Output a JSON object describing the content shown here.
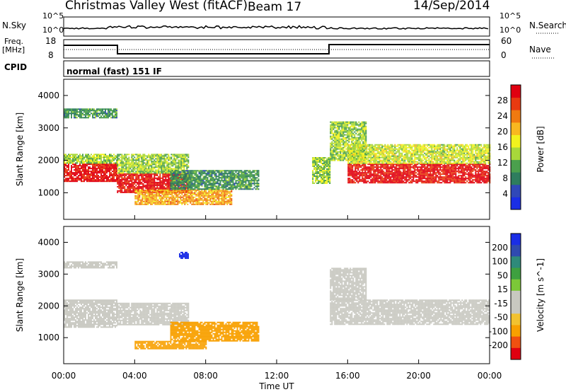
{
  "header": {
    "radar": "Christmas Valley West (fitACF)",
    "beam": "Beam 17",
    "date": "14/Sep/2014"
  },
  "top_panels": {
    "nsky_label": "N.Sky",
    "nsky_ticks": [
      "10^5",
      "10^0"
    ],
    "nsearch_label": "N.Search",
    "nsearch_ticks": [
      "10^5",
      "10^0"
    ],
    "freq_label_1": "Freq.",
    "freq_label_2": "[MHz]",
    "freq_ticks": [
      "18",
      "8"
    ],
    "nave_label": "Nave",
    "nave_ticks": [
      "60",
      "0"
    ],
    "cpid_label": "CPID",
    "cpid_text": "normal (fast) 151 IF"
  },
  "colors": {
    "power_scale": [
      "#1a2ee6",
      "#3048b8",
      "#2e7d5e",
      "#4ba04d",
      "#a8d83a",
      "#f2f21e",
      "#f8b820",
      "#f07a10",
      "#e83a10",
      "#e00010"
    ],
    "velocity_scale": [
      "#e00010",
      "#f05010",
      "#f8a000",
      "#f2c230",
      "#c8c8c0",
      "#c8c8c0",
      "#7cc838",
      "#3ea040",
      "#2e8a7a",
      "#2f4ab0",
      "#1a2ee6"
    ]
  },
  "chart_data": [
    {
      "type": "heatmap",
      "name": "power",
      "ylabel": "Slant Range [km]",
      "ylim": [
        180,
        4500
      ],
      "yticks": [
        "1000",
        "2000",
        "3000",
        "4000"
      ],
      "xlim": [
        0,
        24
      ],
      "colorbar_label": "Power [dB]",
      "colorbar_ticks": [
        "4",
        "8",
        "12",
        "16",
        "20",
        "24",
        "28"
      ],
      "colorbar_range": [
        0,
        32
      ],
      "echo_regions": [
        {
          "t0": 0.0,
          "t1": 3.0,
          "r0": 1350,
          "r1": 1900,
          "level": 30
        },
        {
          "t0": 0.0,
          "t1": 3.0,
          "r0": 1900,
          "r1": 2200,
          "level": 14
        },
        {
          "t0": 0.0,
          "t1": 3.0,
          "r0": 3300,
          "r1": 3600,
          "level": 10
        },
        {
          "t0": 3.0,
          "t1": 7.0,
          "r0": 1000,
          "r1": 1600,
          "level": 30
        },
        {
          "t0": 3.0,
          "t1": 7.0,
          "r0": 1600,
          "r1": 2200,
          "level": 14
        },
        {
          "t0": 4.0,
          "t1": 9.5,
          "r0": 650,
          "r1": 1100,
          "level": 22
        },
        {
          "t0": 6.0,
          "t1": 11.0,
          "r0": 1100,
          "r1": 1700,
          "level": 10
        },
        {
          "t0": 14.0,
          "t1": 15.0,
          "r0": 1300,
          "r1": 2100,
          "level": 14
        },
        {
          "t0": 15.0,
          "t1": 17.0,
          "r0": 2000,
          "r1": 3200,
          "level": 14
        },
        {
          "t0": 16.0,
          "t1": 24.0,
          "r0": 1300,
          "r1": 1900,
          "level": 30
        },
        {
          "t0": 16.0,
          "t1": 24.0,
          "r0": 1900,
          "r1": 2500,
          "level": 16
        }
      ]
    },
    {
      "type": "heatmap",
      "name": "velocity",
      "ylabel": "Slant Range [km]",
      "ylim": [
        180,
        4500
      ],
      "yticks": [
        "1000",
        "2000",
        "3000",
        "4000"
      ],
      "xlabel": "Time UT",
      "xlim": [
        0,
        24
      ],
      "xticks": [
        "00:00",
        "04:00",
        "08:00",
        "12:00",
        "16:00",
        "20:00",
        "00:00"
      ],
      "colorbar_label": "Velocity [m s^-1]",
      "colorbar_ticks": [
        "200",
        "100",
        "50",
        "15",
        "-15",
        "-50",
        "-100",
        "-200"
      ],
      "echo_regions": [
        {
          "t0": 0.0,
          "t1": 3.0,
          "r0": 1350,
          "r1": 2200,
          "velocity": 0
        },
        {
          "t0": 0.0,
          "t1": 3.0,
          "r0": 3200,
          "r1": 3400,
          "velocity": 0
        },
        {
          "t0": 3.0,
          "t1": 7.0,
          "r0": 1400,
          "r1": 2100,
          "velocity": 0
        },
        {
          "t0": 4.0,
          "t1": 8.0,
          "r0": 650,
          "r1": 900,
          "velocity": -30
        },
        {
          "t0": 6.0,
          "t1": 11.0,
          "r0": 900,
          "r1": 1500,
          "velocity": -30
        },
        {
          "t0": 6.5,
          "t1": 7.0,
          "r0": 3500,
          "r1": 3700,
          "velocity": 200
        },
        {
          "t0": 15.0,
          "t1": 24.0,
          "r0": 1400,
          "r1": 2200,
          "velocity": 0
        },
        {
          "t0": 15.0,
          "t1": 17.0,
          "r0": 2200,
          "r1": 3200,
          "velocity": 0
        }
      ]
    }
  ]
}
